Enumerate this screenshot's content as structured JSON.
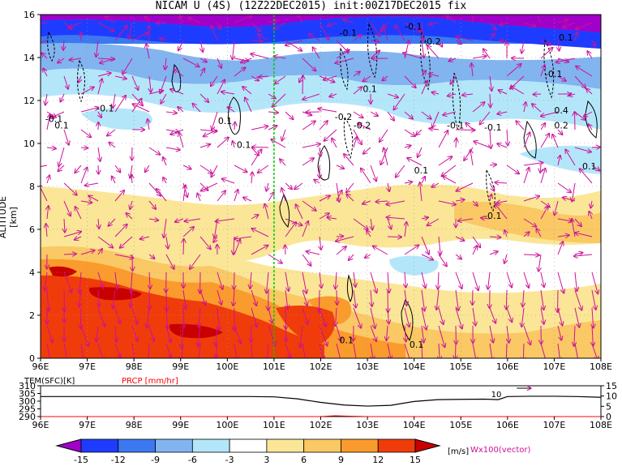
{
  "title": "NICAM U (4S) (12Z22DEC2015) init:00Z17DEC2015 fix",
  "chart_data": [
    {
      "type": "heatmap",
      "ylabel": "ALTITUDE [km]",
      "x_ticks": [
        "96E",
        "97E",
        "98E",
        "99E",
        "100E",
        "101E",
        "102E",
        "103E",
        "104E",
        "105E",
        "106E",
        "107E",
        "108E"
      ],
      "y_ticks": [
        "0",
        "2",
        "4",
        "6",
        "8",
        "10",
        "12",
        "14",
        "16"
      ],
      "xlim": [
        96,
        108
      ],
      "ylim": [
        0,
        16
      ],
      "marker_line_lon": 101,
      "color_levels": [
        "-15",
        "-12",
        "-9",
        "-6",
        "-3",
        "3",
        "6",
        "9",
        "12",
        "15"
      ],
      "color_unit": "[m/s]",
      "vector_label": "Wx100(vector)",
      "contour_labels": [
        {
          "text": "-0.1",
          "lon": 97.2,
          "alt": 11.5
        },
        {
          "text": "0.1",
          "lon": 96.3,
          "alt": 10.7
        },
        {
          "text": "-0.1",
          "lon": 96.1,
          "alt": 11.0
        },
        {
          "text": "0.1",
          "lon": 99.8,
          "alt": 10.9
        },
        {
          "text": "0.1",
          "lon": 100.2,
          "alt": 9.8
        },
        {
          "text": "-0.1",
          "lon": 102.4,
          "alt": 15.0
        },
        {
          "text": "-0.1",
          "lon": 103.8,
          "alt": 15.3
        },
        {
          "text": "-0.2",
          "lon": 104.2,
          "alt": 14.6
        },
        {
          "text": "0.1",
          "lon": 102.9,
          "alt": 12.4
        },
        {
          "text": "-0.2",
          "lon": 102.3,
          "alt": 11.1
        },
        {
          "text": "-0.2",
          "lon": 102.7,
          "alt": 10.7
        },
        {
          "text": "-0.1",
          "lon": 104.7,
          "alt": 10.7
        },
        {
          "text": "-0.1",
          "lon": 105.5,
          "alt": 10.6
        },
        {
          "text": "0.1",
          "lon": 104.0,
          "alt": 8.6
        },
        {
          "text": "0.1",
          "lon": 107.1,
          "alt": 14.8
        },
        {
          "text": "-0.1",
          "lon": 106.8,
          "alt": 13.1
        },
        {
          "text": "0.4",
          "lon": 107.0,
          "alt": 11.4
        },
        {
          "text": "0.2",
          "lon": 107.0,
          "alt": 10.7
        },
        {
          "text": "0.1",
          "lon": 107.6,
          "alt": 8.8
        },
        {
          "text": "-0.1",
          "lon": 105.5,
          "alt": 6.5
        },
        {
          "text": "0.1",
          "lon": 102.4,
          "alt": 0.7
        },
        {
          "text": "0.1",
          "lon": 103.9,
          "alt": 0.5
        }
      ]
    },
    {
      "type": "line",
      "series": [
        {
          "name": "TEM(SFC)[K]",
          "x": [
            96,
            97,
            98,
            99,
            100,
            100.5,
            101,
            101.5,
            102,
            102.5,
            103,
            103.5,
            104,
            104.5,
            105,
            105.5,
            105.8,
            106,
            106.5,
            107,
            107.5,
            108
          ],
          "values": [
            303.0,
            303.0,
            303.0,
            303.0,
            303.0,
            303.0,
            302.8,
            301.5,
            299.2,
            297.5,
            296.8,
            297.3,
            299.8,
            301.0,
            301.2,
            301.3,
            301.0,
            303.0,
            303.2,
            303.2,
            303.0,
            302.5
          ]
        },
        {
          "name": "PRCP [mm/hr]",
          "x": [
            96,
            102,
            102.3,
            102.6,
            103,
            104,
            108
          ],
          "values": [
            0,
            0,
            0.4,
            0.2,
            0,
            0,
            0
          ]
        }
      ],
      "left_ticks": [
        "310",
        "305",
        "300",
        "295",
        "290"
      ],
      "right_ticks": [
        "15",
        "10",
        "5",
        "0"
      ],
      "x_ticks": [
        "96E",
        "97E",
        "98E",
        "99E",
        "100E",
        "101E",
        "102E",
        "103E",
        "104E",
        "105E",
        "106E",
        "107E",
        "108E"
      ],
      "annotation": "10",
      "ylim": [
        290,
        310
      ],
      "y2lim": [
        0,
        15
      ]
    }
  ],
  "colors": {
    "levels": [
      "#a000c8",
      "#1e3cff",
      "#3c78f0",
      "#82b4f0",
      "#b4e6fa",
      "#ffffff",
      "#fae696",
      "#fac864",
      "#fa9b2d",
      "#f03c0a",
      "#c80000"
    ],
    "vector": "#cc1199",
    "line": "#00cc00",
    "prcp": "#ff0000",
    "contour": "#000000"
  }
}
